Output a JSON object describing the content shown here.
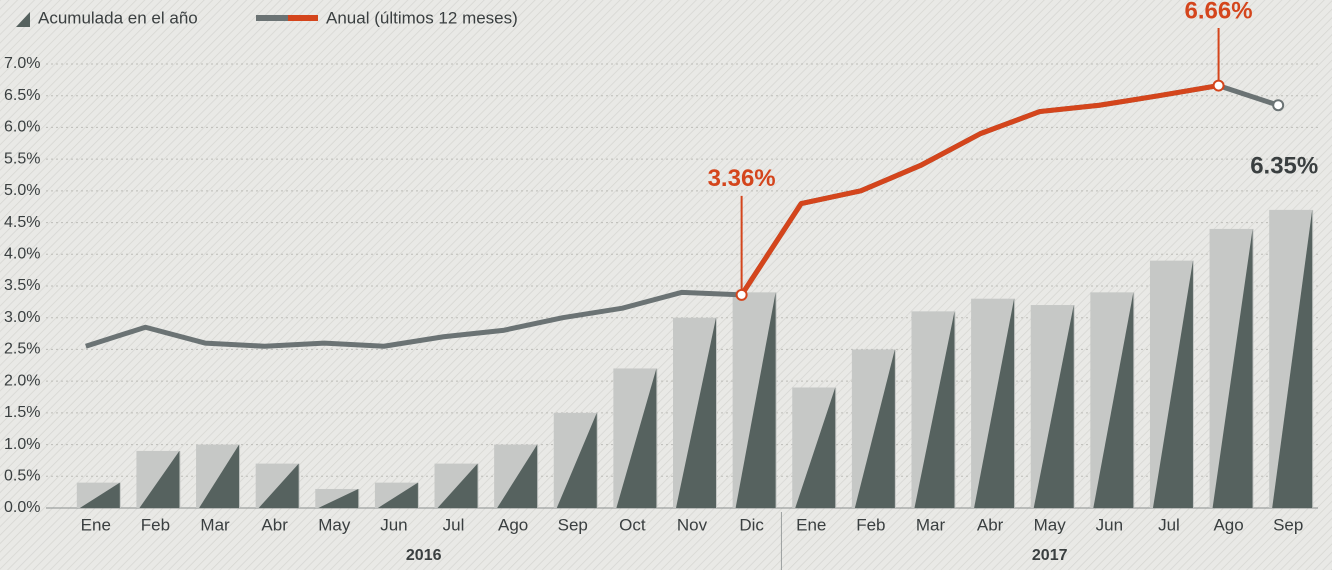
{
  "chart_data": {
    "type": "bar_line",
    "categories": [
      "Ene",
      "Feb",
      "Mar",
      "Abr",
      "May",
      "Jun",
      "Jul",
      "Ago",
      "Sep",
      "Oct",
      "Nov",
      "Dic",
      "Ene",
      "Feb",
      "Mar",
      "Abr",
      "May",
      "Jun",
      "Jul",
      "Ago",
      "Sep"
    ],
    "x_group_labels": [
      "2016",
      "2017"
    ],
    "series": [
      {
        "name": "Acumulada en el año",
        "type": "bar",
        "color": "#56625f",
        "shadow_color": "#c6c8c6",
        "values": [
          0.4,
          0.9,
          1.0,
          0.7,
          0.3,
          0.4,
          0.7,
          1.0,
          1.5,
          2.2,
          3.0,
          3.4,
          1.9,
          2.5,
          3.1,
          3.3,
          3.2,
          3.4,
          3.9,
          4.4,
          4.7
        ]
      },
      {
        "name": "Anual (últimos 12 meses)",
        "type": "line",
        "color": "#6b7374",
        "accent_color": "#d4451c",
        "values": [
          2.55,
          2.85,
          2.6,
          2.55,
          2.6,
          2.55,
          2.7,
          2.8,
          3.0,
          3.15,
          3.4,
          3.36,
          4.8,
          5.0,
          5.4,
          5.9,
          6.25,
          6.35,
          6.5,
          6.66,
          6.35
        ],
        "value_labels": [
          null,
          null,
          null,
          null,
          null,
          null,
          null,
          null,
          null,
          null,
          null,
          "3.36%",
          null,
          null,
          null,
          null,
          null,
          null,
          null,
          "6.66%",
          "6.35%"
        ]
      }
    ],
    "ylim": [
      0,
      7
    ],
    "yticks": [
      {
        "value": 0,
        "label": "0.0%"
      },
      {
        "value": 0.5,
        "label": "0.5%"
      },
      {
        "value": 1,
        "label": "1.0%"
      },
      {
        "value": 1.5,
        "label": "1.5%"
      },
      {
        "value": 2,
        "label": "2.0%"
      },
      {
        "value": 2.5,
        "label": "2.5%"
      },
      {
        "value": 3,
        "label": "3.0%"
      },
      {
        "value": 3.5,
        "label": "3.5%"
      },
      {
        "value": 4,
        "label": "4.0%"
      },
      {
        "value": 4.5,
        "label": "4.5%"
      },
      {
        "value": 5,
        "label": "5.0%"
      },
      {
        "value": 5.5,
        "label": "5.5%"
      },
      {
        "value": 6,
        "label": "6.0%"
      },
      {
        "value": 6.5,
        "label": "6.5%"
      },
      {
        "value": 7,
        "label": "7.0%"
      }
    ],
    "grid": true
  }
}
